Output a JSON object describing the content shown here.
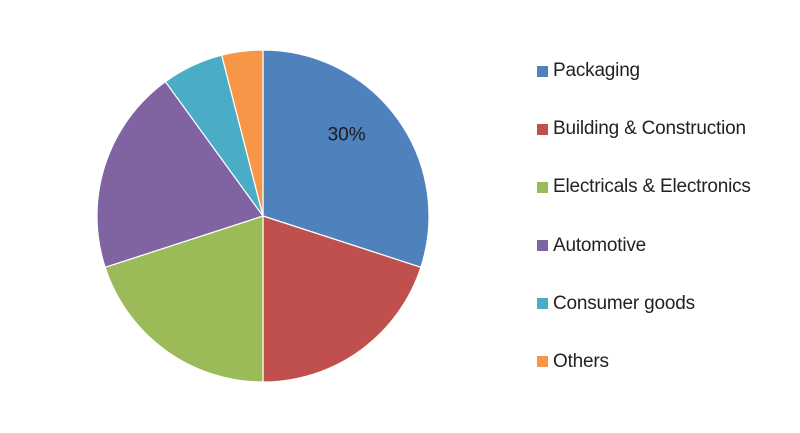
{
  "chart_data": {
    "type": "pie",
    "categories": [
      "Packaging",
      "Building & Construction",
      "Electricals & Electronics",
      "Automotive",
      "Consumer goods",
      "Others"
    ],
    "values": [
      30,
      20,
      20,
      20,
      6,
      4
    ],
    "unit": "%",
    "data_labels": [
      "30%",
      "",
      "",
      "",
      "",
      ""
    ],
    "colors": [
      "#4F81BD",
      "#C0504D",
      "#9BBB59",
      "#8064A2",
      "#4BACC6",
      "#F79646"
    ],
    "start": "12 o'clock, clockwise",
    "legend_position": "right"
  }
}
